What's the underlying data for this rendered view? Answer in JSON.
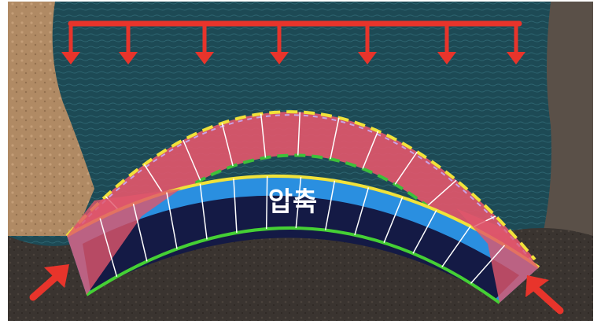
{
  "diagram": {
    "compression_label": "압축",
    "colors": {
      "water": "#1d4a55",
      "rock_left": "#b08a64",
      "rock_right": "#5a5048",
      "rock_bottom": "#3a3430",
      "load_arrows": "#e8342b",
      "upper_arch_fill": "#e0566b",
      "lower_arch_outer": "#2a8fe0",
      "lower_arch_inner": "#141a45",
      "outline_yellow": "#f1e23a",
      "outline_green_dashed": "#3ec03a",
      "outline_green": "#45d034",
      "outline_lilac_dashed": "#c9a3e6",
      "segment_lines": "#ffffff"
    },
    "icons": {
      "load": "down-arrow-icon",
      "thrust": "diagonal-arrow-icon"
    }
  }
}
